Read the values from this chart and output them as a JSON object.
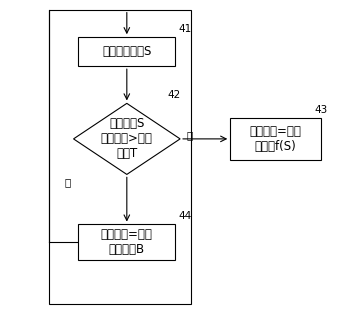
{
  "bg_color": "#ffffff",
  "box_edge_color": "#000000",
  "text_color": "#000000",
  "node41_label": "检知坡度变化S",
  "node41_num": "41",
  "node42_label": "坡度变化S\n持续时间>时间\n限制T",
  "node42_num": "42",
  "node43_label": "限电流值=高限\n电流值f(S)",
  "node43_num": "43",
  "node44_label": "限电流值=正常\n限电流值B",
  "node44_num": "44",
  "yes_label": "是",
  "no_label": "否",
  "font_size": 8.5,
  "num_font_size": 7.5
}
